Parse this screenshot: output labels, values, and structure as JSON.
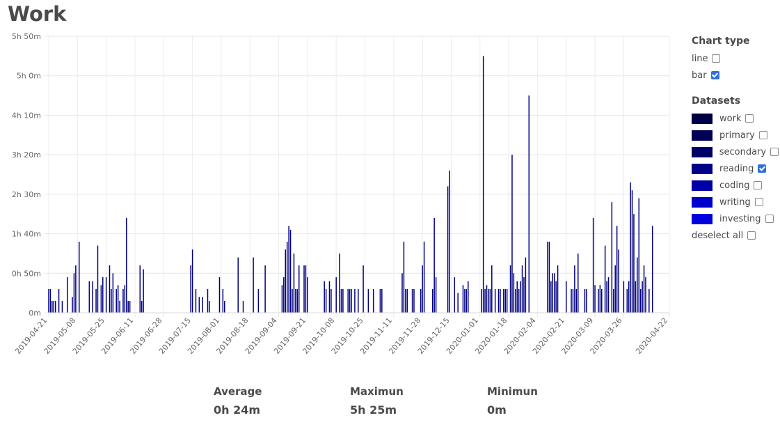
{
  "page": {
    "title": "Work"
  },
  "controls": {
    "chart_type_heading": "Chart type",
    "chart_types": [
      {
        "label": "line",
        "checked": false
      },
      {
        "label": "bar",
        "checked": true
      }
    ],
    "datasets_heading": "Datasets",
    "datasets": [
      {
        "label": "work",
        "color": "#000044",
        "checked": false
      },
      {
        "label": "primary",
        "color": "#000055",
        "checked": false
      },
      {
        "label": "secondary",
        "color": "#000066",
        "checked": false
      },
      {
        "label": "reading",
        "color": "#000088",
        "checked": true
      },
      {
        "label": "coding",
        "color": "#0000a6",
        "checked": false
      },
      {
        "label": "writing",
        "color": "#0000cc",
        "checked": false
      },
      {
        "label": "investing",
        "color": "#0000dd",
        "checked": false
      }
    ],
    "deselect_all_label": "deselect all",
    "deselect_all_checked": false
  },
  "stats": [
    {
      "label": "Average",
      "value": "0h 24m"
    },
    {
      "label": "Maximun",
      "value": "5h 25m"
    },
    {
      "label": "Minimun",
      "value": "0m"
    }
  ],
  "chart_data": {
    "type": "bar",
    "title": "",
    "xlabel": "",
    "ylabel": "",
    "series": [
      {
        "name": "reading",
        "color": "#000080"
      }
    ],
    "x_range": [
      "2019-04-21",
      "2020-04-22"
    ],
    "x_ticks": [
      "2019-04-21",
      "2019-05-08",
      "2019-05-25",
      "2019-06-11",
      "2019-06-28",
      "2019-07-15",
      "2019-08-01",
      "2019-08-18",
      "2019-09-04",
      "2019-09-21",
      "2019-10-08",
      "2019-10-25",
      "2019-11-11",
      "2019-11-28",
      "2019-12-15",
      "2020-01-01",
      "2020-01-18",
      "2020-02-04",
      "2020-02-21",
      "2020-03-09",
      "2020-03-26",
      "2020-04-22"
    ],
    "y_unit": "minutes",
    "ylim": [
      0,
      350
    ],
    "y_ticks": [
      0,
      50,
      100,
      150,
      200,
      250,
      300,
      350
    ],
    "y_tick_labels": [
      "0m",
      "0h 50m",
      "1h 40m",
      "2h 30m",
      "3h 20m",
      "4h 10m",
      "5h 0m",
      "5h 50m"
    ],
    "grid": true,
    "points": [
      [
        "2019-04-21",
        30
      ],
      [
        "2019-04-22",
        30
      ],
      [
        "2019-04-23",
        15
      ],
      [
        "2019-04-24",
        15
      ],
      [
        "2019-04-25",
        15
      ],
      [
        "2019-04-27",
        30
      ],
      [
        "2019-04-29",
        15
      ],
      [
        "2019-05-02",
        45
      ],
      [
        "2019-05-05",
        20
      ],
      [
        "2019-05-06",
        50
      ],
      [
        "2019-05-07",
        60
      ],
      [
        "2019-05-09",
        90
      ],
      [
        "2019-05-15",
        40
      ],
      [
        "2019-05-17",
        40
      ],
      [
        "2019-05-19",
        30
      ],
      [
        "2019-05-20",
        85
      ],
      [
        "2019-05-22",
        35
      ],
      [
        "2019-05-23",
        45
      ],
      [
        "2019-05-25",
        45
      ],
      [
        "2019-05-27",
        60
      ],
      [
        "2019-05-28",
        30
      ],
      [
        "2019-05-29",
        50
      ],
      [
        "2019-05-31",
        30
      ],
      [
        "2019-06-01",
        35
      ],
      [
        "2019-06-02",
        15
      ],
      [
        "2019-06-04",
        30
      ],
      [
        "2019-06-05",
        35
      ],
      [
        "2019-06-06",
        120
      ],
      [
        "2019-06-07",
        15
      ],
      [
        "2019-06-08",
        15
      ],
      [
        "2019-06-14",
        60
      ],
      [
        "2019-06-15",
        15
      ],
      [
        "2019-06-16",
        55
      ],
      [
        "2019-07-14",
        60
      ],
      [
        "2019-07-15",
        80
      ],
      [
        "2019-07-17",
        30
      ],
      [
        "2019-07-19",
        20
      ],
      [
        "2019-07-21",
        20
      ],
      [
        "2019-07-24",
        30
      ],
      [
        "2019-07-25",
        15
      ],
      [
        "2019-07-31",
        45
      ],
      [
        "2019-08-02",
        30
      ],
      [
        "2019-08-03",
        15
      ],
      [
        "2019-08-11",
        70
      ],
      [
        "2019-08-14",
        15
      ],
      [
        "2019-08-20",
        70
      ],
      [
        "2019-08-23",
        30
      ],
      [
        "2019-08-27",
        60
      ],
      [
        "2019-09-06",
        35
      ],
      [
        "2019-09-07",
        45
      ],
      [
        "2019-09-08",
        80
      ],
      [
        "2019-09-09",
        90
      ],
      [
        "2019-09-10",
        110
      ],
      [
        "2019-09-11",
        105
      ],
      [
        "2019-09-12",
        30
      ],
      [
        "2019-09-13",
        75
      ],
      [
        "2019-09-14",
        30
      ],
      [
        "2019-09-15",
        30
      ],
      [
        "2019-09-16",
        60
      ],
      [
        "2019-09-19",
        60
      ],
      [
        "2019-09-20",
        60
      ],
      [
        "2019-09-21",
        45
      ],
      [
        "2019-10-01",
        40
      ],
      [
        "2019-10-02",
        30
      ],
      [
        "2019-10-04",
        40
      ],
      [
        "2019-10-05",
        30
      ],
      [
        "2019-10-08",
        45
      ],
      [
        "2019-10-10",
        75
      ],
      [
        "2019-10-11",
        30
      ],
      [
        "2019-10-12",
        30
      ],
      [
        "2019-10-15",
        30
      ],
      [
        "2019-10-16",
        30
      ],
      [
        "2019-10-17",
        30
      ],
      [
        "2019-10-19",
        30
      ],
      [
        "2019-10-21",
        30
      ],
      [
        "2019-10-24",
        60
      ],
      [
        "2019-10-27",
        30
      ],
      [
        "2019-10-30",
        30
      ],
      [
        "2019-11-03",
        30
      ],
      [
        "2019-11-04",
        30
      ],
      [
        "2019-11-16",
        50
      ],
      [
        "2019-11-17",
        90
      ],
      [
        "2019-11-18",
        30
      ],
      [
        "2019-11-19",
        30
      ],
      [
        "2019-11-22",
        30
      ],
      [
        "2019-11-23",
        30
      ],
      [
        "2019-11-27",
        30
      ],
      [
        "2019-11-28",
        60
      ],
      [
        "2019-11-29",
        90
      ],
      [
        "2019-12-04",
        30
      ],
      [
        "2019-12-05",
        120
      ],
      [
        "2019-12-06",
        45
      ],
      [
        "2019-12-13",
        160
      ],
      [
        "2019-12-14",
        180
      ],
      [
        "2019-12-17",
        45
      ],
      [
        "2019-12-19",
        25
      ],
      [
        "2019-12-22",
        35
      ],
      [
        "2019-12-23",
        30
      ],
      [
        "2019-12-24",
        30
      ],
      [
        "2019-12-25",
        40
      ],
      [
        "2020-01-02",
        30
      ],
      [
        "2020-01-03",
        325
      ],
      [
        "2020-01-04",
        30
      ],
      [
        "2020-01-05",
        35
      ],
      [
        "2020-01-06",
        30
      ],
      [
        "2020-01-07",
        30
      ],
      [
        "2020-01-08",
        60
      ],
      [
        "2020-01-10",
        30
      ],
      [
        "2020-01-12",
        30
      ],
      [
        "2020-01-13",
        30
      ],
      [
        "2020-01-15",
        30
      ],
      [
        "2020-01-16",
        30
      ],
      [
        "2020-01-17",
        30
      ],
      [
        "2020-01-19",
        60
      ],
      [
        "2020-01-20",
        200
      ],
      [
        "2020-01-21",
        50
      ],
      [
        "2020-01-22",
        30
      ],
      [
        "2020-01-23",
        40
      ],
      [
        "2020-01-24",
        30
      ],
      [
        "2020-01-25",
        40
      ],
      [
        "2020-01-26",
        60
      ],
      [
        "2020-01-27",
        45
      ],
      [
        "2020-01-28",
        70
      ],
      [
        "2020-01-30",
        275
      ],
      [
        "2020-02-10",
        90
      ],
      [
        "2020-02-11",
        90
      ],
      [
        "2020-02-12",
        40
      ],
      [
        "2020-02-13",
        50
      ],
      [
        "2020-02-14",
        50
      ],
      [
        "2020-02-15",
        40
      ],
      [
        "2020-02-16",
        60
      ],
      [
        "2020-02-21",
        40
      ],
      [
        "2020-02-24",
        30
      ],
      [
        "2020-02-25",
        30
      ],
      [
        "2020-02-26",
        60
      ],
      [
        "2020-02-27",
        30
      ],
      [
        "2020-02-28",
        75
      ],
      [
        "2020-03-03",
        30
      ],
      [
        "2020-03-04",
        30
      ],
      [
        "2020-03-08",
        120
      ],
      [
        "2020-03-09",
        35
      ],
      [
        "2020-03-11",
        30
      ],
      [
        "2020-03-12",
        35
      ],
      [
        "2020-03-13",
        30
      ],
      [
        "2020-03-15",
        85
      ],
      [
        "2020-03-16",
        40
      ],
      [
        "2020-03-17",
        45
      ],
      [
        "2020-03-19",
        140
      ],
      [
        "2020-03-20",
        30
      ],
      [
        "2020-03-21",
        60
      ],
      [
        "2020-03-22",
        110
      ],
      [
        "2020-03-23",
        80
      ],
      [
        "2020-03-26",
        40
      ],
      [
        "2020-03-28",
        30
      ],
      [
        "2020-03-29",
        40
      ],
      [
        "2020-03-30",
        165
      ],
      [
        "2020-03-31",
        155
      ],
      [
        "2020-04-01",
        125
      ],
      [
        "2020-04-02",
        40
      ],
      [
        "2020-04-03",
        70
      ],
      [
        "2020-04-04",
        145
      ],
      [
        "2020-04-05",
        30
      ],
      [
        "2020-04-06",
        40
      ],
      [
        "2020-04-07",
        60
      ],
      [
        "2020-04-08",
        45
      ],
      [
        "2020-04-10",
        30
      ],
      [
        "2020-04-12",
        110
      ]
    ]
  }
}
